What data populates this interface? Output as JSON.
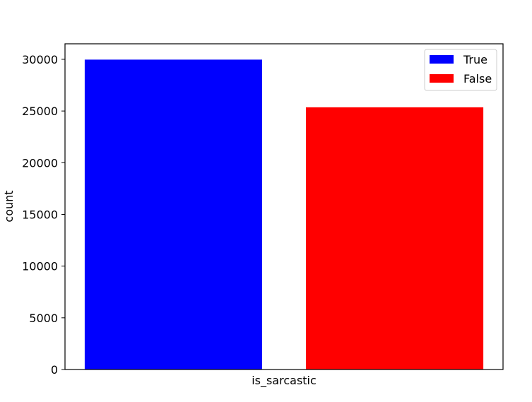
{
  "chart_data": {
    "type": "bar",
    "title": "",
    "xlabel": "is_sarcastic",
    "ylabel": "count",
    "ylim": [
      0,
      31500
    ],
    "yticks": [
      0,
      5000,
      10000,
      15000,
      20000,
      25000,
      30000
    ],
    "ytick_labels": [
      "0",
      "5000",
      "10000",
      "15000",
      "20000",
      "25000",
      "30000"
    ],
    "series": [
      {
        "name": "True",
        "values": [
          29970
        ],
        "color": "#0000ff"
      },
      {
        "name": "False",
        "values": [
          25358
        ],
        "color": "#ff0000"
      }
    ],
    "legend": {
      "position": "top-right",
      "entries": [
        "True",
        "False"
      ]
    },
    "grid": false
  }
}
